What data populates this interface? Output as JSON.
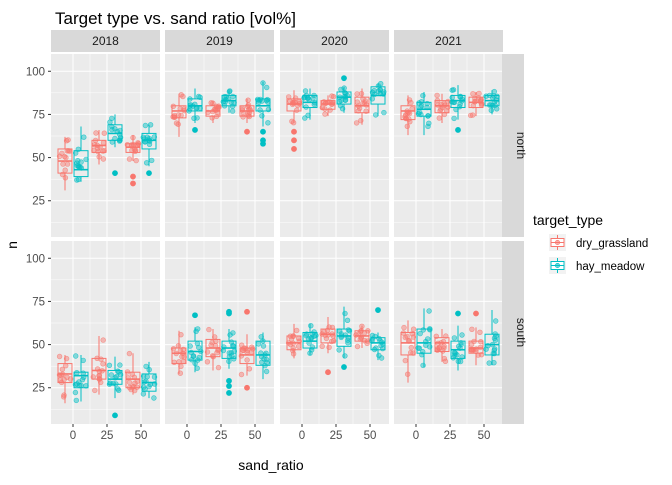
{
  "chart_data": {
    "type": "boxplot-jitter",
    "title": "Target type vs. sand ratio [vol%]",
    "xlabel": "sand_ratio",
    "ylabel": "n",
    "x_categories": [
      "0",
      "25",
      "50"
    ],
    "y_ticks": [
      25,
      50,
      75,
      100
    ],
    "ylim": [
      4,
      110
    ],
    "facet_columns": [
      "2018",
      "2019",
      "2020",
      "2021"
    ],
    "facet_rows": [
      "north",
      "south"
    ],
    "legend": {
      "title": "target_type",
      "placement": "right",
      "entries": [
        {
          "name": "dry_grassland",
          "color": "#F8766D"
        },
        {
          "name": "hay_meadow",
          "color": "#00BFC4"
        }
      ]
    },
    "colors": {
      "dry_grassland": "#F8766D",
      "hay_meadow": "#00BFC4",
      "panel_bg": "#EBEBEB",
      "strip_bg": "#D9D9D9",
      "grid": "#FFFFFF"
    },
    "boxes": [
      {
        "row": "north",
        "year": "2018",
        "sand": "0",
        "type": "dry_grassland",
        "stats": [
          31,
          41,
          48,
          55,
          62
        ],
        "outliers": []
      },
      {
        "row": "north",
        "year": "2018",
        "sand": "0",
        "type": "hay_meadow",
        "stats": [
          36,
          39,
          43,
          54,
          68
        ],
        "outliers": []
      },
      {
        "row": "north",
        "year": "2018",
        "sand": "25",
        "type": "dry_grassland",
        "stats": [
          46,
          53,
          57,
          60,
          66
        ],
        "outliers": []
      },
      {
        "row": "north",
        "year": "2018",
        "sand": "25",
        "type": "hay_meadow",
        "stats": [
          56,
          60,
          64,
          69,
          75
        ],
        "outliers": [
          41
        ]
      },
      {
        "row": "north",
        "year": "2018",
        "sand": "50",
        "type": "dry_grassland",
        "stats": [
          48,
          53,
          56,
          58,
          63
        ],
        "outliers": [
          35,
          39
        ]
      },
      {
        "row": "north",
        "year": "2018",
        "sand": "50",
        "type": "hay_meadow",
        "stats": [
          45,
          55,
          60,
          64,
          69
        ],
        "outliers": [
          41
        ]
      },
      {
        "row": "north",
        "year": "2019",
        "sand": "0",
        "type": "dry_grassland",
        "stats": [
          62,
          73,
          77,
          80,
          87
        ],
        "outliers": []
      },
      {
        "row": "north",
        "year": "2019",
        "sand": "0",
        "type": "hay_meadow",
        "stats": [
          70,
          77,
          80,
          84,
          90
        ],
        "outliers": [
          66
        ]
      },
      {
        "row": "north",
        "year": "2019",
        "sand": "25",
        "type": "dry_grassland",
        "stats": [
          70,
          74,
          77,
          80,
          83
        ],
        "outliers": []
      },
      {
        "row": "north",
        "year": "2019",
        "sand": "25",
        "type": "hay_meadow",
        "stats": [
          76,
          80,
          83,
          86,
          89
        ],
        "outliers": []
      },
      {
        "row": "north",
        "year": "2019",
        "sand": "50",
        "type": "dry_grassland",
        "stats": [
          70,
          74,
          77,
          80,
          84
        ],
        "outliers": [
          65
        ]
      },
      {
        "row": "north",
        "year": "2019",
        "sand": "50",
        "type": "hay_meadow",
        "stats": [
          68,
          77,
          80,
          84,
          94
        ],
        "outliers": [
          58,
          60,
          65
        ]
      },
      {
        "row": "north",
        "year": "2020",
        "sand": "0",
        "type": "dry_grassland",
        "stats": [
          70,
          77,
          81,
          84,
          89
        ],
        "outliers": [
          55,
          60,
          65
        ]
      },
      {
        "row": "north",
        "year": "2020",
        "sand": "0",
        "type": "hay_meadow",
        "stats": [
          72,
          79,
          82,
          86,
          90
        ],
        "outliers": []
      },
      {
        "row": "north",
        "year": "2020",
        "sand": "25",
        "type": "dry_grassland",
        "stats": [
          74,
          78,
          81,
          83,
          86
        ],
        "outliers": []
      },
      {
        "row": "north",
        "year": "2020",
        "sand": "25",
        "type": "hay_meadow",
        "stats": [
          76,
          81,
          85,
          88,
          91
        ],
        "outliers": [
          96
        ]
      },
      {
        "row": "north",
        "year": "2020",
        "sand": "50",
        "type": "dry_grassland",
        "stats": [
          69,
          76,
          80,
          85,
          90
        ],
        "outliers": []
      },
      {
        "row": "north",
        "year": "2020",
        "sand": "50",
        "type": "hay_meadow",
        "stats": [
          74,
          81,
          86,
          91,
          93
        ],
        "outliers": []
      },
      {
        "row": "north",
        "year": "2021",
        "sand": "0",
        "type": "dry_grassland",
        "stats": [
          63,
          72,
          77,
          80,
          86
        ],
        "outliers": []
      },
      {
        "row": "north",
        "year": "2021",
        "sand": "0",
        "type": "hay_meadow",
        "stats": [
          63,
          74,
          78,
          82,
          88
        ],
        "outliers": []
      },
      {
        "row": "north",
        "year": "2021",
        "sand": "25",
        "type": "dry_grassland",
        "stats": [
          70,
          76,
          80,
          83,
          87
        ],
        "outliers": []
      },
      {
        "row": "north",
        "year": "2021",
        "sand": "25",
        "type": "hay_meadow",
        "stats": [
          72,
          79,
          83,
          86,
          92
        ],
        "outliers": [
          66
        ]
      },
      {
        "row": "north",
        "year": "2021",
        "sand": "50",
        "type": "dry_grassland",
        "stats": [
          74,
          79,
          82,
          85,
          88
        ],
        "outliers": []
      },
      {
        "row": "north",
        "year": "2021",
        "sand": "50",
        "type": "hay_meadow",
        "stats": [
          75,
          80,
          83,
          86,
          89
        ],
        "outliers": []
      },
      {
        "row": "south",
        "year": "2018",
        "sand": "0",
        "type": "dry_grassland",
        "stats": [
          16,
          28,
          33,
          39,
          44
        ],
        "outliers": []
      },
      {
        "row": "south",
        "year": "2018",
        "sand": "0",
        "type": "hay_meadow",
        "stats": [
          17,
          25,
          32,
          34,
          44
        ],
        "outliers": []
      },
      {
        "row": "south",
        "year": "2018",
        "sand": "25",
        "type": "dry_grassland",
        "stats": [
          21,
          30,
          35,
          42,
          55
        ],
        "outliers": []
      },
      {
        "row": "south",
        "year": "2018",
        "sand": "25",
        "type": "hay_meadow",
        "stats": [
          19,
          27,
          30,
          35,
          43
        ],
        "outliers": [
          9
        ]
      },
      {
        "row": "south",
        "year": "2018",
        "sand": "50",
        "type": "dry_grassland",
        "stats": [
          21,
          25,
          30,
          34,
          45
        ],
        "outliers": []
      },
      {
        "row": "south",
        "year": "2018",
        "sand": "50",
        "type": "hay_meadow",
        "stats": [
          19,
          23,
          28,
          33,
          40
        ],
        "outliers": []
      },
      {
        "row": "south",
        "year": "2019",
        "sand": "0",
        "type": "dry_grassland",
        "stats": [
          33,
          39,
          45,
          48,
          58
        ],
        "outliers": []
      },
      {
        "row": "south",
        "year": "2019",
        "sand": "0",
        "type": "hay_meadow",
        "stats": [
          34,
          41,
          46,
          52,
          60
        ],
        "outliers": [
          67
        ]
      },
      {
        "row": "south",
        "year": "2019",
        "sand": "25",
        "type": "dry_grassland",
        "stats": [
          35,
          43,
          48,
          53,
          59
        ],
        "outliers": []
      },
      {
        "row": "south",
        "year": "2019",
        "sand": "25",
        "type": "hay_meadow",
        "stats": [
          36,
          42,
          48,
          52,
          59
        ],
        "outliers": [
          22,
          26,
          29,
          68,
          69
        ]
      },
      {
        "row": "south",
        "year": "2019",
        "sand": "50",
        "type": "dry_grassland",
        "stats": [
          32,
          39,
          44,
          48,
          56
        ],
        "outliers": [
          25,
          69
        ]
      },
      {
        "row": "south",
        "year": "2019",
        "sand": "50",
        "type": "hay_meadow",
        "stats": [
          30,
          38,
          44,
          52,
          57
        ],
        "outliers": []
      },
      {
        "row": "south",
        "year": "2020",
        "sand": "0",
        "type": "dry_grassland",
        "stats": [
          42,
          47,
          51,
          55,
          62
        ],
        "outliers": []
      },
      {
        "row": "south",
        "year": "2020",
        "sand": "0",
        "type": "hay_meadow",
        "stats": [
          44,
          48,
          52,
          57,
          62
        ],
        "outliers": []
      },
      {
        "row": "south",
        "year": "2020",
        "sand": "25",
        "type": "dry_grassland",
        "stats": [
          45,
          51,
          56,
          59,
          66
        ],
        "outliers": [
          34
        ]
      },
      {
        "row": "south",
        "year": "2020",
        "sand": "25",
        "type": "hay_meadow",
        "stats": [
          42,
          49,
          55,
          59,
          72
        ],
        "outliers": [
          37
        ]
      },
      {
        "row": "south",
        "year": "2020",
        "sand": "50",
        "type": "dry_grassland",
        "stats": [
          48,
          52,
          55,
          58,
          61
        ],
        "outliers": []
      },
      {
        "row": "south",
        "year": "2020",
        "sand": "50",
        "type": "hay_meadow",
        "stats": [
          41,
          47,
          51,
          54,
          57
        ],
        "outliers": [
          70
        ]
      },
      {
        "row": "south",
        "year": "2021",
        "sand": "0",
        "type": "dry_grassland",
        "stats": [
          28,
          44,
          51,
          57,
          64
        ],
        "outliers": []
      },
      {
        "row": "south",
        "year": "2021",
        "sand": "0",
        "type": "hay_meadow",
        "stats": [
          37,
          45,
          51,
          59,
          71
        ],
        "outliers": []
      },
      {
        "row": "south",
        "year": "2021",
        "sand": "25",
        "type": "dry_grassland",
        "stats": [
          40,
          46,
          51,
          54,
          59
        ],
        "outliers": []
      },
      {
        "row": "south",
        "year": "2021",
        "sand": "25",
        "type": "hay_meadow",
        "stats": [
          35,
          42,
          47,
          52,
          61
        ],
        "outliers": [
          68
        ]
      },
      {
        "row": "south",
        "year": "2021",
        "sand": "50",
        "type": "dry_grassland",
        "stats": [
          38,
          45,
          48,
          52,
          60
        ],
        "outliers": [
          68
        ]
      },
      {
        "row": "south",
        "year": "2021",
        "sand": "50",
        "type": "hay_meadow",
        "stats": [
          38,
          44,
          50,
          56,
          70
        ],
        "outliers": []
      }
    ]
  }
}
